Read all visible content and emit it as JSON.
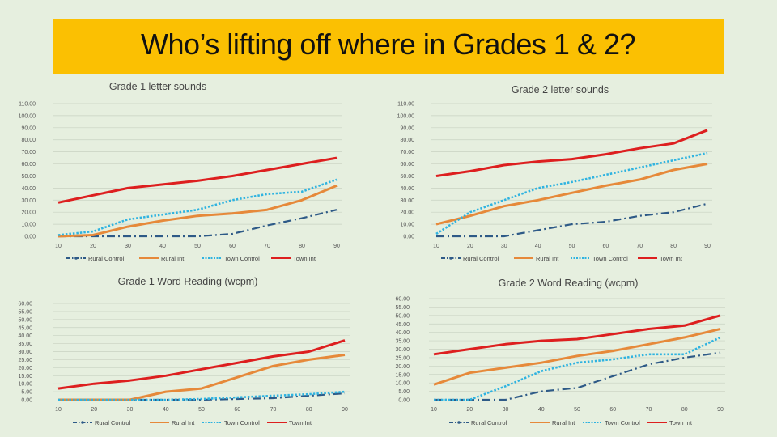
{
  "banner": {
    "title": "Who’s lifting off where in Grades 1 & 2?"
  },
  "colors": {
    "banner": "#fbc002",
    "background": "#e6efdf",
    "rural_control": "#2e5a87",
    "rural_int": "#e6893a",
    "town_control": "#2fb3e0",
    "town_int": "#dd1f1f"
  },
  "series_names": [
    "Rural Control",
    "Rural Int",
    "Town Control",
    "Town Int"
  ],
  "chart_data": [
    {
      "type": "line",
      "title": "Grade 1 letter sounds",
      "x": [
        10,
        20,
        30,
        40,
        50,
        60,
        70,
        80,
        90
      ],
      "ylim": [
        0,
        110
      ],
      "yticks": [
        "0.00",
        "10.00",
        "20.00",
        "30.00",
        "40.00",
        "50.00",
        "60.00",
        "70.00",
        "80.00",
        "90.00",
        "100.00",
        "110.00"
      ],
      "legend": "bottom",
      "series": [
        {
          "name": "Rural Control",
          "values": [
            0,
            0,
            0,
            0,
            0,
            2,
            9,
            15,
            22
          ]
        },
        {
          "name": "Rural Int",
          "values": [
            0,
            1,
            8,
            13,
            17,
            19,
            22,
            30,
            42
          ]
        },
        {
          "name": "Town Control",
          "values": [
            1,
            4,
            14,
            18,
            22,
            30,
            35,
            37,
            47
          ]
        },
        {
          "name": "Town Int",
          "values": [
            28,
            34,
            40,
            43,
            46,
            50,
            55,
            60,
            65
          ]
        }
      ]
    },
    {
      "type": "line",
      "title": "Grade 2 letter sounds",
      "x": [
        10,
        20,
        30,
        40,
        50,
        60,
        70,
        80,
        90
      ],
      "ylim": [
        0,
        110
      ],
      "yticks": [
        "0.00",
        "10.00",
        "20.00",
        "30.00",
        "40.00",
        "50.00",
        "60.00",
        "70.00",
        "80.00",
        "90.00",
        "100.00",
        "110.00"
      ],
      "legend": "bottom",
      "series": [
        {
          "name": "Rural Control",
          "values": [
            0,
            0,
            0,
            5,
            10,
            12,
            17,
            20,
            27
          ]
        },
        {
          "name": "Rural Int",
          "values": [
            10,
            17,
            25,
            30,
            36,
            42,
            47,
            55,
            60
          ]
        },
        {
          "name": "Town Control",
          "values": [
            2,
            20,
            30,
            40,
            45,
            51,
            57,
            63,
            69
          ]
        },
        {
          "name": "Town Int",
          "values": [
            50,
            54,
            59,
            62,
            64,
            68,
            73,
            77,
            88
          ]
        }
      ]
    },
    {
      "type": "line",
      "title": "Grade 1 Word Reading (wcpm)",
      "x": [
        10,
        20,
        30,
        40,
        50,
        60,
        70,
        80,
        90
      ],
      "ylim": [
        0,
        60
      ],
      "yticks": [
        "0.00",
        "5.00",
        "10.00",
        "15.00",
        "20.00",
        "25.00",
        "30.00",
        "35.00",
        "40.00",
        "45.00",
        "50.00",
        "55.00",
        "60.00"
      ],
      "legend": "bottom",
      "series": [
        {
          "name": "Rural Control",
          "values": [
            0,
            0,
            0,
            0,
            0,
            0.5,
            1,
            2.5,
            4
          ]
        },
        {
          "name": "Rural Int",
          "values": [
            0,
            0,
            0,
            5,
            7,
            14,
            21,
            25,
            28
          ]
        },
        {
          "name": "Town Control",
          "values": [
            0,
            0,
            0,
            0,
            0.5,
            1.5,
            2.5,
            3.5,
            5
          ]
        },
        {
          "name": "Town Int",
          "values": [
            7,
            10,
            12,
            15,
            19,
            23,
            27,
            30,
            37
          ]
        }
      ]
    },
    {
      "type": "line",
      "title": "Grade 2 Word Reading (wcpm)",
      "x": [
        10,
        20,
        30,
        40,
        50,
        60,
        70,
        80,
        90
      ],
      "ylim": [
        0,
        60
      ],
      "yticks": [
        "0.00",
        "5.00",
        "10.00",
        "15.00",
        "20.00",
        "25.00",
        "30.00",
        "35.00",
        "40.00",
        "45.00",
        "50.00",
        "55.00",
        "60.00"
      ],
      "legend": "bottom",
      "series": [
        {
          "name": "Rural Control",
          "values": [
            0,
            0,
            0,
            5,
            7,
            14,
            21,
            25,
            28
          ]
        },
        {
          "name": "Rural Int",
          "values": [
            9,
            16,
            19,
            22,
            26,
            29,
            33,
            37,
            42
          ]
        },
        {
          "name": "Town Control",
          "values": [
            0,
            0,
            8,
            17,
            22,
            24,
            27,
            27,
            37
          ]
        },
        {
          "name": "Town Int",
          "values": [
            27,
            30,
            33,
            35,
            36,
            39,
            42,
            44,
            50
          ]
        }
      ]
    }
  ]
}
